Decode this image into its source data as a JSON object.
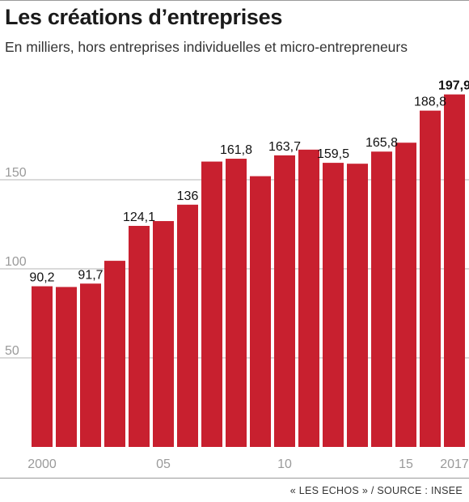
{
  "header": {
    "title": "Les créations d’entreprises",
    "subtitle": "En milliers, hors entreprises individuelles et micro-entrepreneurs"
  },
  "footer": {
    "source": "« LES ECHOS » / SOURCE : INSEE"
  },
  "colors": {
    "bar": "#c8202f",
    "grid": "#b5b5b5",
    "tick_label": "#9a9a9a",
    "value_label": "#111111"
  },
  "chart_data": {
    "type": "bar",
    "categories": [
      "2000",
      "2001",
      "2002",
      "2003",
      "2004",
      "2005",
      "2006",
      "2007",
      "2008",
      "2009",
      "2010",
      "2011",
      "2012",
      "2013",
      "2014",
      "2015",
      "2016",
      "2017"
    ],
    "values": [
      90.2,
      89.8,
      91.7,
      104.5,
      124.1,
      126.8,
      136,
      160.2,
      161.8,
      152.0,
      163.7,
      166.9,
      159.5,
      159.0,
      165.8,
      170.8,
      188.8,
      197.9
    ],
    "labels": [
      "90,2",
      "",
      "91,7",
      "",
      "124,1",
      "",
      "136",
      "",
      "161,8",
      "",
      "163,7",
      "",
      "159,5",
      "",
      "165,8",
      "",
      "188,8",
      "197,9"
    ],
    "bold_label_index": 17,
    "x_tick_labels": [
      "2000",
      "05",
      "10",
      "15",
      "2017"
    ],
    "x_tick_indices": [
      0,
      5,
      10,
      15,
      17
    ],
    "y_ticks": [
      50,
      100,
      150
    ],
    "ylim": [
      0,
      200
    ],
    "grid": true,
    "title": "Les créations d’entreprises",
    "subtitle": "En milliers, hors entreprises individuelles et micro-entrepreneurs",
    "xlabel": "",
    "ylabel": ""
  }
}
